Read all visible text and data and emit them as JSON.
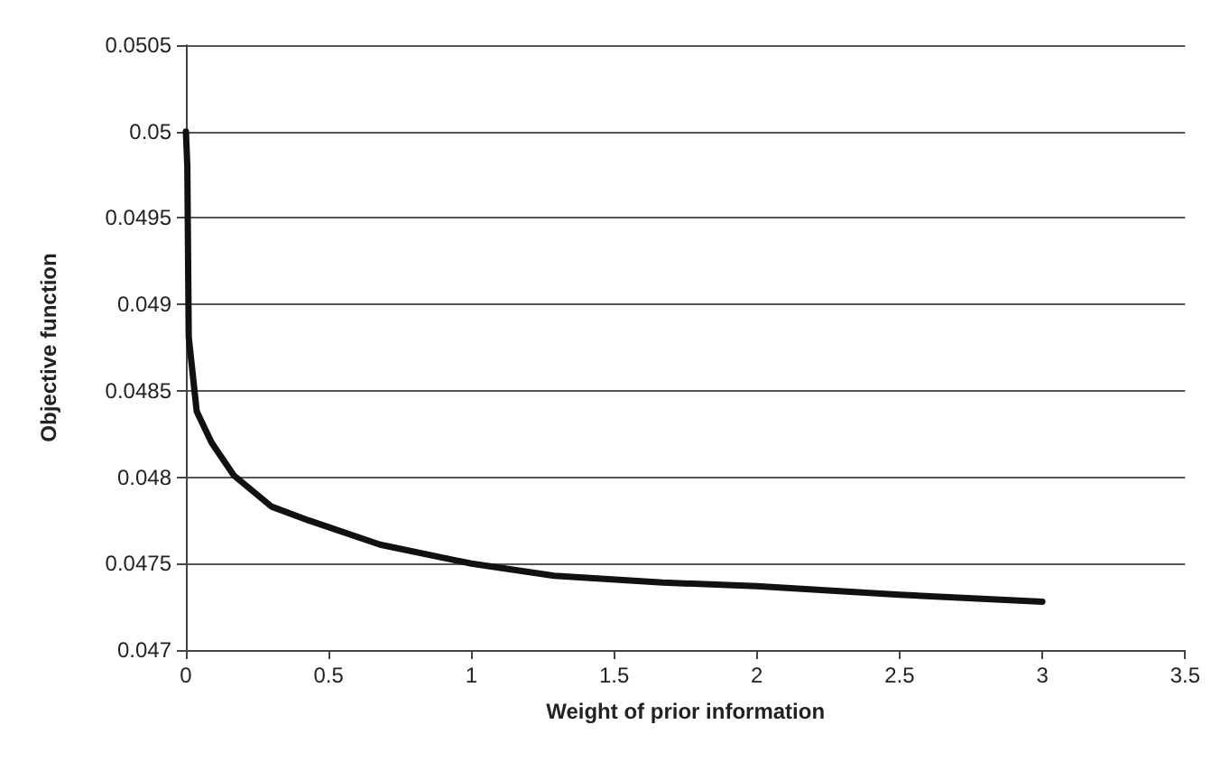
{
  "chart_data": {
    "type": "line",
    "xlabel": "Weight of prior information",
    "ylabel": "Objective function",
    "x": [
      0,
      0.005,
      0.01,
      0.038,
      0.09,
      0.168,
      0.3,
      0.43,
      0.68,
      1.0,
      1.29,
      1.67,
      2.0,
      2.5,
      3.0
    ],
    "series": [
      {
        "color": "#111111",
        "values": [
          0.05,
          0.0498,
          0.04881,
          0.04838,
          0.0482,
          0.04801,
          0.04783,
          0.04775,
          0.04761,
          0.0475,
          0.04743,
          0.04739,
          0.04737,
          0.04732,
          0.04728
        ]
      }
    ],
    "xlim": [
      0,
      3.5
    ],
    "xticks": [
      0,
      0.5,
      1,
      1.5,
      2,
      2.5,
      3,
      3.5
    ],
    "ylim": [
      0.047,
      0.0505
    ],
    "yticks": [
      0.047,
      0.0475,
      0.048,
      0.0485,
      0.049,
      0.0495,
      0.05,
      0.0505
    ],
    "grid": "y",
    "marker": "none",
    "line_style": "solid"
  }
}
